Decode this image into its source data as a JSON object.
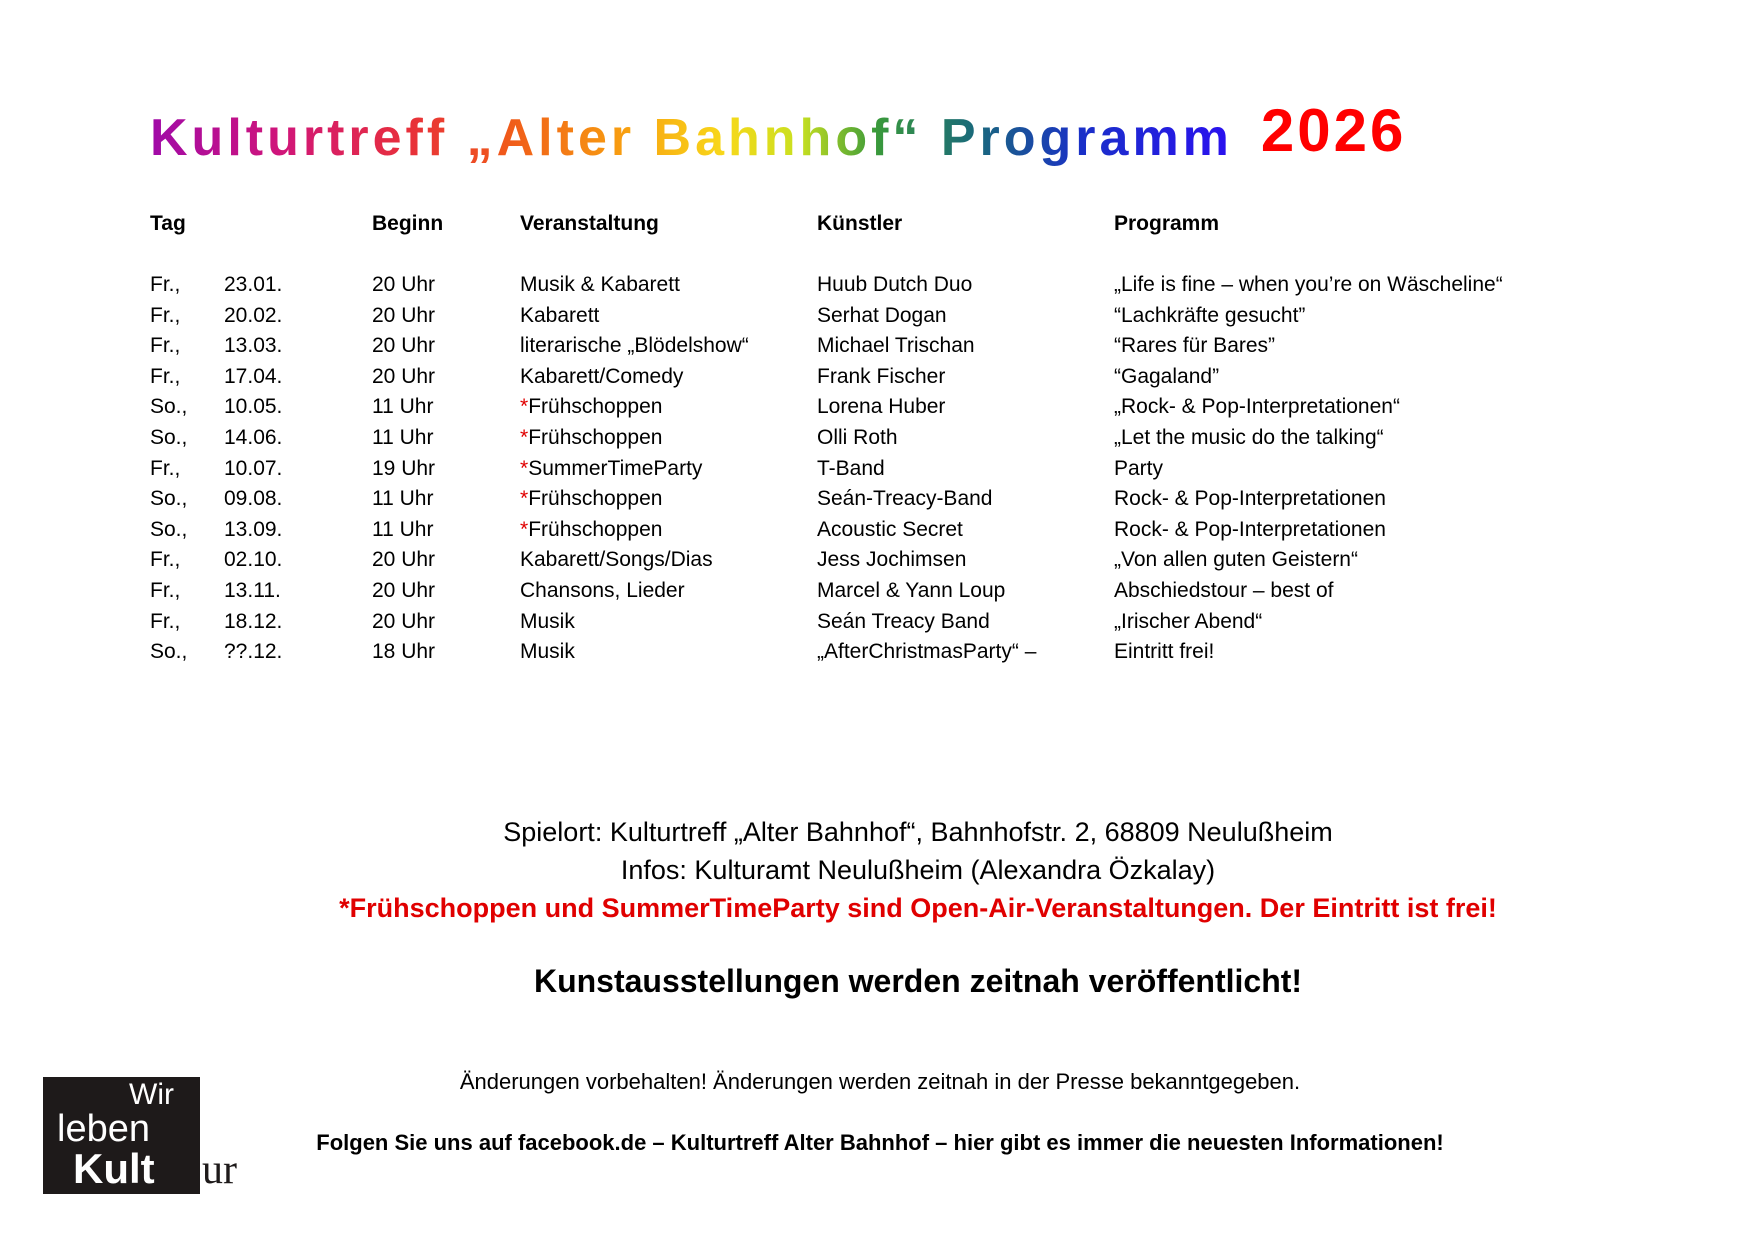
{
  "title": {
    "main": "Kulturtreff „Alter Bahnhof“ Programm",
    "year": "2026"
  },
  "columns": [
    "Tag",
    "Beginn",
    "Veranstaltung",
    "Künstler",
    "Programm"
  ],
  "rows": [
    {
      "day": "Fr.,",
      "date": "23.01.",
      "time": "20 Uhr",
      "star": "",
      "event": "Musik & Kabarett",
      "artist": "Huub Dutch Duo",
      "program": "„Life is fine – when you’re on Wäscheline“"
    },
    {
      "day": "Fr.,",
      "date": "20.02.",
      "time": "20 Uhr",
      "star": "",
      "event": "Kabarett",
      "artist": "Serhat Dogan",
      "program": "“Lachkräfte gesucht”"
    },
    {
      "day": "Fr.,",
      "date": "13.03.",
      "time": "20 Uhr",
      "star": "",
      "event": "literarische „Blödelshow“",
      "artist": "Michael Trischan",
      "program": "“Rares für Bares”"
    },
    {
      "day": "Fr.,",
      "date": "17.04.",
      "time": "20 Uhr",
      "star": "",
      "event": "Kabarett/Comedy",
      "artist": "Frank Fischer",
      "program": "“Gagaland”"
    },
    {
      "day": "So.,",
      "date": "10.05.",
      "time": "11 Uhr",
      "star": "*",
      "event": "Frühschoppen",
      "artist": "Lorena Huber",
      "program": "„Rock- & Pop-Interpretationen“"
    },
    {
      "day": "So.,",
      "date": "14.06.",
      "time": "11 Uhr",
      "star": "*",
      "event": "Frühschoppen",
      "artist": "Olli Roth",
      "program": "„Let the music do the talking“"
    },
    {
      "day": "Fr.,",
      "date": "10.07.",
      "time": "19 Uhr",
      "star": "*",
      "event": "SummerTimeParty",
      "artist": "T-Band",
      "program": "Party"
    },
    {
      "day": "So.,",
      "date": "09.08.",
      "time": "11 Uhr",
      "star": "*",
      "event": "Frühschoppen",
      "artist": "Seán-Treacy-Band",
      "program": "Rock- & Pop-Interpretationen"
    },
    {
      "day": "So.,",
      "date": "13.09.",
      "time": "11 Uhr",
      "star": "*",
      "event": "Frühschoppen",
      "artist": "Acoustic Secret",
      "program": "Rock- & Pop-Interpretationen"
    },
    {
      "day": "Fr.,",
      "date": "02.10.",
      "time": "20 Uhr",
      "star": "",
      "event": "Kabarett/Songs/Dias",
      "artist": "Jess Jochimsen",
      "program": "„Von allen guten Geistern“"
    },
    {
      "day": "Fr.,",
      "date": "13.11.",
      "time": "20 Uhr",
      "star": "",
      "event": "Chansons, Lieder",
      "artist": "Marcel & Yann Loup",
      "program": "Abschiedstour – best of"
    },
    {
      "day": "Fr.,",
      "date": "18.12.",
      "time": "20 Uhr",
      "star": "",
      "event": "Musik",
      "artist": "Seán Treacy Band",
      "program": "„Irischer Abend“"
    },
    {
      "day": "So.,",
      "date": "??.12.",
      "time": "18 Uhr",
      "star": "",
      "event": "Musik",
      "artist": "„AfterChristmasParty“ –",
      "program": "Eintritt frei!"
    }
  ],
  "footer": {
    "venue": "Spielort: Kulturtreff „Alter Bahnhof“, Bahnhofstr. 2, 68809 Neulußheim",
    "info": "Infos: Kulturamt Neulußheim (Alexandra Özkalay)",
    "open_air_note": "*Frühschoppen und SummerTimeParty sind Open-Air-Veranstaltungen. Der Eintritt ist frei!",
    "exhibitions": "Kunstausstellungen werden zeitnah veröffentlicht!",
    "changes": "Änderungen vorbehalten! Änderungen werden zeitnah in der Presse bekanntgegeben.",
    "facebook": "Folgen Sie uns auf facebook.de – Kulturtreff Alter Bahnhof – hier gibt es immer die neuesten Informationen!"
  },
  "logo": {
    "line1": "Wir",
    "line2": "leben",
    "line3a": "Kult",
    "line3b": "ur"
  },
  "colors": {
    "accent_red": "#ff0000",
    "note_red": "#e00000",
    "logo_bg": "#1e1a1a"
  }
}
